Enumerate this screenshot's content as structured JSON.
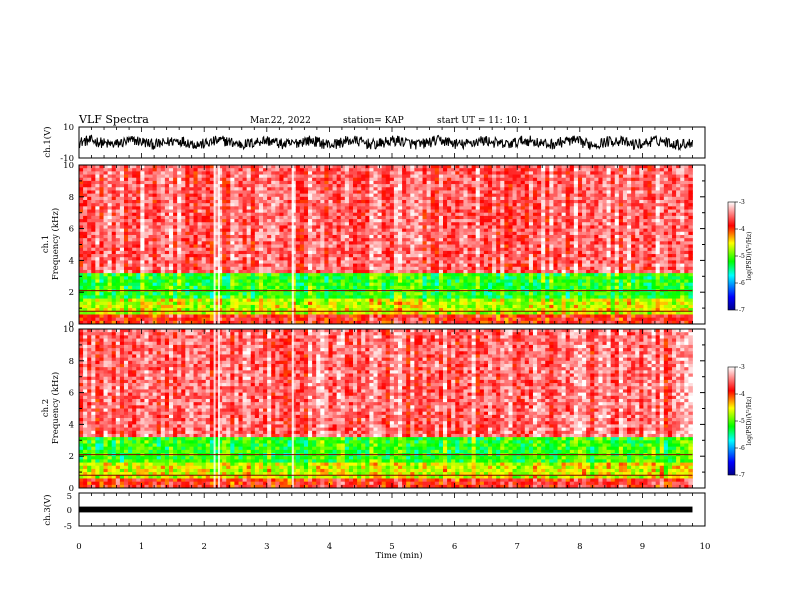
{
  "header": {
    "title": "VLF Spectra",
    "date": "Mar.22, 2022",
    "station": "station= KAP",
    "start_ut": "start  UT =  11: 10: 1"
  },
  "chart_data": [
    {
      "type": "line",
      "panel": "ch1-waveform",
      "ylabel": "ch.1(V)",
      "ylim": [
        -10,
        10
      ],
      "y_tick_labels": [
        "10",
        "-10"
      ],
      "x_range_min": [
        0,
        9.8
      ],
      "description_values": {
        "typical_min": -5,
        "typical_max": 6
      }
    },
    {
      "type": "heatmap",
      "panel": "ch1-spectrogram",
      "ylabel_line1": "ch.1",
      "ylabel_line2": "Frequency (kHz)",
      "ylim_khz": [
        0,
        10
      ],
      "y_ticks": [
        "0",
        "2",
        "4",
        "6",
        "8",
        "10"
      ],
      "colorbar": {
        "label": "log(PSD)(V²/Hz)",
        "range": [
          -7,
          -3
        ],
        "ticks": [
          "-3",
          "-4",
          "-5",
          "-6",
          "-7"
        ]
      },
      "bands": [
        {
          "from_khz": 0.0,
          "to_khz": 0.6,
          "level": -3.8
        },
        {
          "from_khz": 0.6,
          "to_khz": 1.6,
          "level": -4.6
        },
        {
          "from_khz": 1.6,
          "to_khz": 3.2,
          "level": -5.1
        },
        {
          "from_khz": 3.2,
          "to_khz": 10.0,
          "level": -3.5
        }
      ]
    },
    {
      "type": "heatmap",
      "panel": "ch2-spectrogram",
      "ylabel_line1": "ch.2",
      "ylabel_line2": "Frequency (kHz)",
      "ylim_khz": [
        0,
        10
      ],
      "y_ticks": [
        "0",
        "2",
        "4",
        "6",
        "8",
        "10"
      ],
      "colorbar": {
        "label": "log(PSD)(V²/Hz)",
        "range": [
          -7,
          -3
        ],
        "ticks": [
          "-3",
          "-4",
          "-5",
          "-6",
          "-7"
        ]
      },
      "bands": [
        {
          "from_khz": 0.0,
          "to_khz": 0.6,
          "level": -3.8
        },
        {
          "from_khz": 0.6,
          "to_khz": 1.6,
          "level": -4.6
        },
        {
          "from_khz": 1.6,
          "to_khz": 3.2,
          "level": -5.1
        },
        {
          "from_khz": 3.2,
          "to_khz": 10.0,
          "level": -3.5
        }
      ]
    },
    {
      "type": "line",
      "panel": "ch3-waveform",
      "ylabel": "ch.3(V)",
      "ylim": [
        -5,
        5
      ],
      "y_tick_labels": [
        "5",
        "0",
        "-5"
      ],
      "band_volts": [
        -0.4,
        0.4
      ]
    }
  ],
  "x_axis": {
    "label": "Time  (min)",
    "range": [
      0,
      10
    ],
    "data_end_min": 9.8,
    "ticks": [
      "0",
      "1",
      "2",
      "3",
      "4",
      "5",
      "6",
      "7",
      "8",
      "9",
      "10"
    ]
  },
  "colors": {
    "scale": [
      "#00008b",
      "#0000ff",
      "#00ffff",
      "#00ff00",
      "#ffff00",
      "#ff0000",
      "#ffffff"
    ]
  }
}
